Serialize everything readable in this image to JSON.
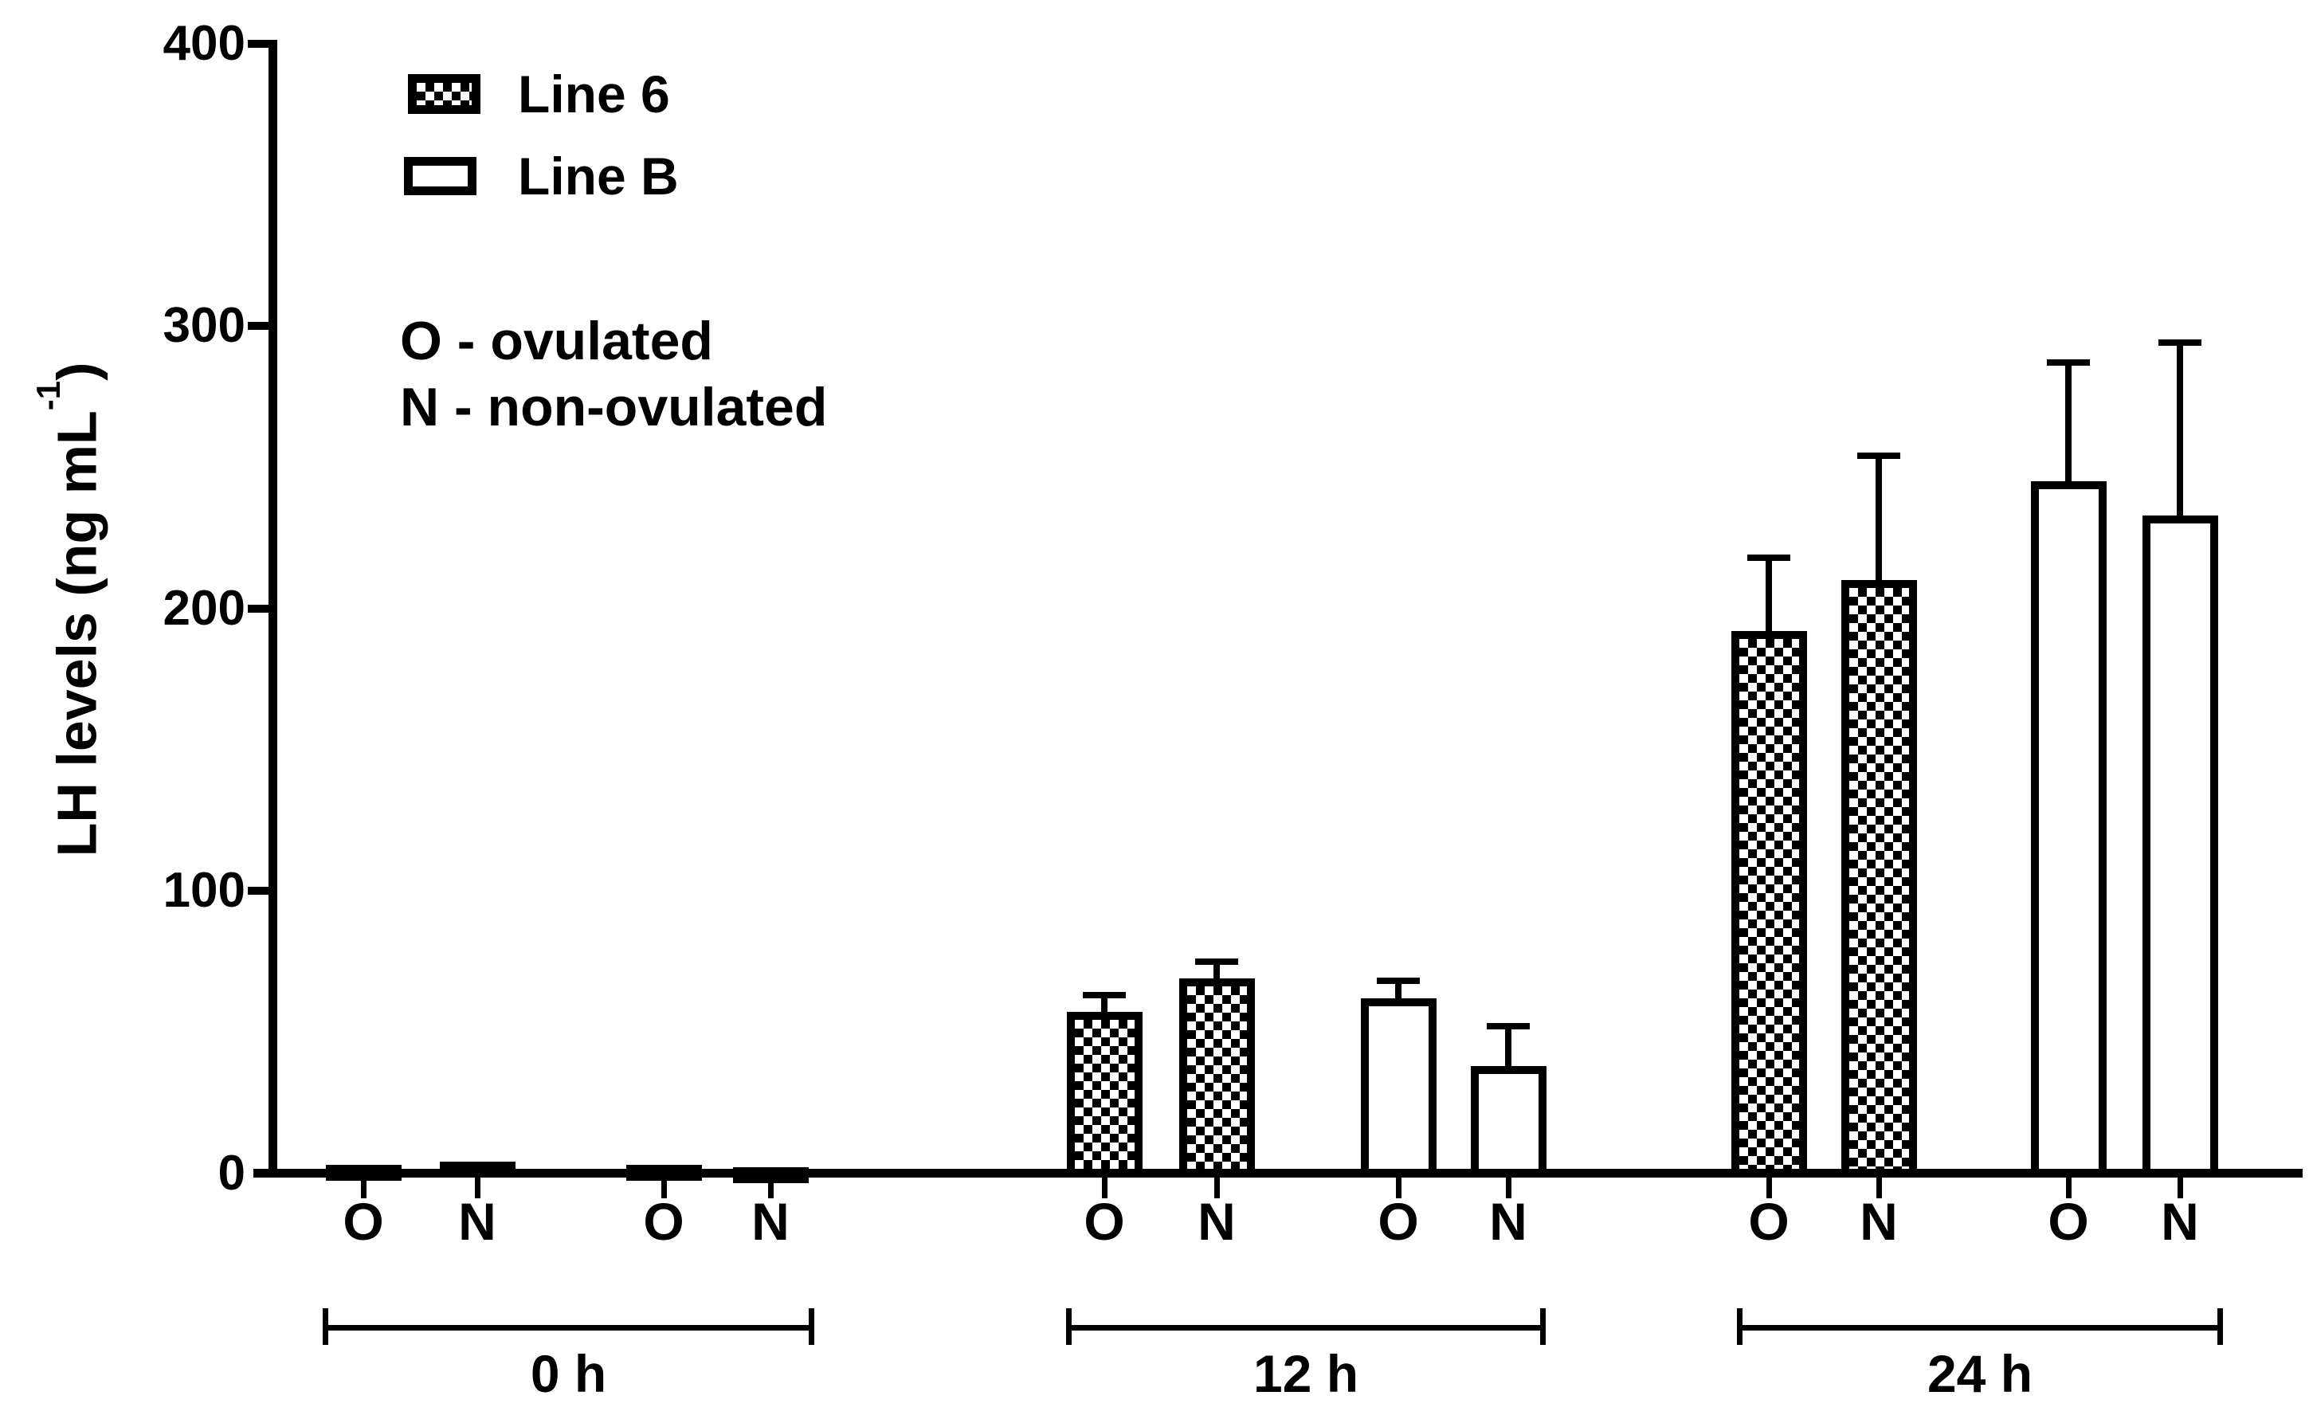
{
  "figure": {
    "background_color": "#ffffff",
    "ink_color": "#000000"
  },
  "chart_data": {
    "type": "bar",
    "title": "",
    "xlabel": "",
    "ylabel": "LH levels (ng mL⁻¹)",
    "ylabel_parts": {
      "main": "LH levels (ng mL",
      "sup": "-1",
      "close": ")"
    },
    "ylim": [
      0,
      400
    ],
    "yticks": [
      0,
      100,
      200,
      300,
      400
    ],
    "grid": false,
    "legend": {
      "position": "top-left-inside",
      "entries": [
        {
          "label": "Line 6",
          "pattern": "checkerboard"
        },
        {
          "label": "Line B",
          "pattern": "open"
        }
      ]
    },
    "annotations": [
      "O - ovulated",
      "N - non-ovulated"
    ],
    "groups": [
      {
        "label": "0 h",
        "bars": [
          {
            "tick": "O",
            "series": "Line 6",
            "pattern": "checkerboard",
            "value": 3,
            "error_top": null
          },
          {
            "tick": "N",
            "series": "Line 6",
            "pattern": "checkerboard",
            "value": 4,
            "error_top": null
          },
          {
            "tick": "O",
            "series": "Line B",
            "pattern": "open",
            "value": 3,
            "error_top": null
          },
          {
            "tick": "N",
            "series": "Line B",
            "pattern": "open",
            "value": 2,
            "error_top": null
          }
        ]
      },
      {
        "label": "12 h",
        "bars": [
          {
            "tick": "O",
            "series": "Line 6",
            "pattern": "checkerboard",
            "value": 57,
            "error_top": 63
          },
          {
            "tick": "N",
            "series": "Line 6",
            "pattern": "checkerboard",
            "value": 69,
            "error_top": 75
          },
          {
            "tick": "O",
            "series": "Line B",
            "pattern": "open",
            "value": 62,
            "error_top": 68
          },
          {
            "tick": "N",
            "series": "Line B",
            "pattern": "open",
            "value": 38,
            "error_top": 52
          }
        ]
      },
      {
        "label": "24 h",
        "bars": [
          {
            "tick": "O",
            "series": "Line 6",
            "pattern": "checkerboard",
            "value": 192,
            "error_top": 218
          },
          {
            "tick": "N",
            "series": "Line 6",
            "pattern": "checkerboard",
            "value": 210,
            "error_top": 254
          },
          {
            "tick": "O",
            "series": "Line B",
            "pattern": "open",
            "value": 245,
            "error_top": 287
          },
          {
            "tick": "N",
            "series": "Line B",
            "pattern": "open",
            "value": 233,
            "error_top": 294
          }
        ]
      }
    ]
  }
}
